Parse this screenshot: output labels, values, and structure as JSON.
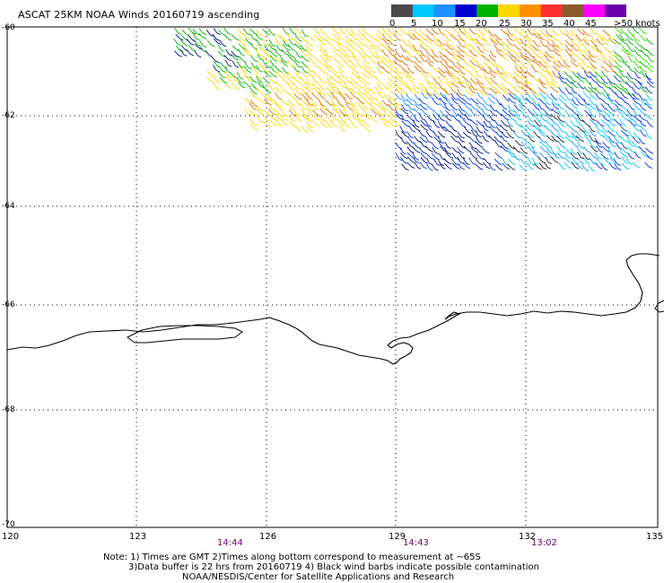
{
  "title": "ASCAT 25KM NOAA Winds 20160719 ascending",
  "colorbar": {
    "labels": [
      "0",
      "5",
      "10",
      "15",
      "20",
      "25",
      "30",
      "35",
      "40",
      "45",
      ">50 knots"
    ],
    "colors": [
      "#4a4a4a",
      "#00c8ff",
      "#1e90ff",
      "#0000d0",
      "#00b400",
      "#ffd700",
      "#ff9000",
      "#ff3030",
      "#8b5a2b",
      "#ff00ff",
      "#6a00a8"
    ]
  },
  "lat_labels": [
    "-60",
    "-62",
    "-64",
    "-66",
    "-68",
    "-70"
  ],
  "lon_labels": [
    "120",
    "123",
    "126",
    "129",
    "132",
    "135"
  ],
  "time_labels": [
    "14:44",
    "14:43",
    "13:02"
  ],
  "notes": [
    "Note: 1) Times are GMT 2)Times along bottom correspond to measurement at ~65S",
    "3)Data buffer is 22 hrs from 20160719 4) Black wind barbs indicate possible contamination",
    "NOAA/NESDIS/Center for Satellite Applications and Research"
  ]
}
